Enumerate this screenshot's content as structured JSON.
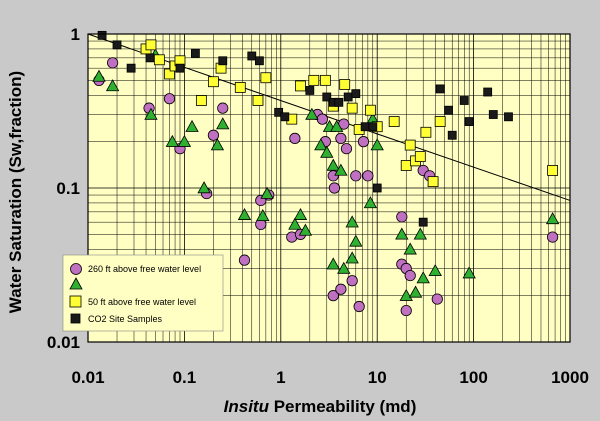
{
  "chart_data": {
    "type": "scatter",
    "xlabel": {
      "italic": "Insitu",
      "rest": " Permeability (md)"
    },
    "ylabel": "Water Saturation  (Sw,fraction)",
    "x_scale": "log",
    "y_scale": "log",
    "xlim": [
      0.01,
      1000
    ],
    "ylim": [
      0.01,
      1
    ],
    "x_ticks": [
      "0.01",
      "0.1",
      "1",
      "10",
      "100",
      "1000"
    ],
    "y_ticks": [
      "1",
      "0.1",
      "0.01"
    ],
    "grid": true,
    "legend_position": "bottom-left",
    "colors": {
      "plot_bg": "#ffffc4",
      "frame_bg": "#c9c9c9",
      "grid": "#000000",
      "circle": "#c070c0",
      "triangle": "#30b030",
      "square_yellow": "#ffff33",
      "square_black": "#1a1a1a"
    },
    "trend_line": {
      "points": [
        [
          0.01,
          1.0
        ],
        [
          1000,
          0.083
        ]
      ]
    },
    "series": [
      {
        "name": "260 ft above free water level",
        "marker": "circle",
        "points": [
          [
            0.013,
            0.5
          ],
          [
            0.018,
            0.65
          ],
          [
            0.043,
            0.33
          ],
          [
            0.07,
            0.38
          ],
          [
            0.09,
            0.18
          ],
          [
            0.17,
            0.092
          ],
          [
            0.2,
            0.22
          ],
          [
            0.25,
            0.33
          ],
          [
            0.62,
            0.058
          ],
          [
            0.62,
            0.083
          ],
          [
            0.75,
            0.09
          ],
          [
            0.42,
            0.034
          ],
          [
            1.3,
            0.048
          ],
          [
            1.6,
            0.05
          ],
          [
            1.4,
            0.21
          ],
          [
            2.4,
            0.3
          ],
          [
            2.7,
            0.28
          ],
          [
            2.9,
            0.2
          ],
          [
            3.5,
            0.12
          ],
          [
            3.6,
            0.1
          ],
          [
            4.2,
            0.21
          ],
          [
            4.5,
            0.26
          ],
          [
            4.8,
            0.18
          ],
          [
            6.0,
            0.12
          ],
          [
            7.2,
            0.2
          ],
          [
            8.0,
            0.12
          ],
          [
            3.5,
            0.02
          ],
          [
            4.2,
            0.022
          ],
          [
            5.5,
            0.025
          ],
          [
            6.5,
            0.017
          ],
          [
            18,
            0.065
          ],
          [
            18,
            0.032
          ],
          [
            20,
            0.03
          ],
          [
            22,
            0.027
          ],
          [
            30,
            0.13
          ],
          [
            35,
            0.12
          ],
          [
            20,
            0.016
          ],
          [
            42,
            0.019
          ],
          [
            660,
            0.048
          ]
        ]
      },
      {
        "name": "",
        "marker": "triangle",
        "points": [
          [
            0.013,
            0.53
          ],
          [
            0.018,
            0.46
          ],
          [
            0.045,
            0.3
          ],
          [
            0.05,
            0.73
          ],
          [
            0.075,
            0.2
          ],
          [
            0.1,
            0.2
          ],
          [
            0.12,
            0.25
          ],
          [
            0.16,
            0.1
          ],
          [
            0.22,
            0.19
          ],
          [
            0.25,
            0.26
          ],
          [
            0.42,
            0.067
          ],
          [
            0.65,
            0.066
          ],
          [
            0.72,
            0.092
          ],
          [
            1.4,
            0.058
          ],
          [
            1.6,
            0.067
          ],
          [
            1.8,
            0.053
          ],
          [
            2.1,
            0.3
          ],
          [
            2.6,
            0.19
          ],
          [
            3.0,
            0.17
          ],
          [
            3.2,
            0.25
          ],
          [
            3.5,
            0.14
          ],
          [
            3.8,
            0.25
          ],
          [
            4.2,
            0.13
          ],
          [
            5.5,
            0.06
          ],
          [
            6.0,
            0.045
          ],
          [
            8.5,
            0.08
          ],
          [
            9.0,
            0.28
          ],
          [
            10,
            0.19
          ],
          [
            3.5,
            0.032
          ],
          [
            4.5,
            0.03
          ],
          [
            5.5,
            0.035
          ],
          [
            18,
            0.05
          ],
          [
            22,
            0.04
          ],
          [
            28,
            0.05
          ],
          [
            20,
            0.02
          ],
          [
            25,
            0.021
          ],
          [
            30,
            0.026
          ],
          [
            40,
            0.029
          ],
          [
            90,
            0.028
          ],
          [
            660,
            0.063
          ]
        ]
      },
      {
        "name": "50 ft above free water level",
        "marker": "square",
        "fill": "#ffff33",
        "points": [
          [
            0.04,
            0.8
          ],
          [
            0.045,
            0.85
          ],
          [
            0.055,
            0.68
          ],
          [
            0.07,
            0.55
          ],
          [
            0.08,
            0.62
          ],
          [
            0.09,
            0.67
          ],
          [
            0.15,
            0.37
          ],
          [
            0.2,
            0.49
          ],
          [
            0.24,
            0.6
          ],
          [
            0.38,
            0.45
          ],
          [
            0.58,
            0.37
          ],
          [
            0.7,
            0.52
          ],
          [
            1.3,
            0.28
          ],
          [
            1.6,
            0.46
          ],
          [
            2.2,
            0.5
          ],
          [
            2.9,
            0.5
          ],
          [
            3.5,
            0.34
          ],
          [
            4.6,
            0.47
          ],
          [
            5.5,
            0.33
          ],
          [
            6.5,
            0.24
          ],
          [
            8.5,
            0.32
          ],
          [
            10,
            0.25
          ],
          [
            15,
            0.27
          ],
          [
            20,
            0.14
          ],
          [
            22,
            0.19
          ],
          [
            25,
            0.15
          ],
          [
            28,
            0.16
          ],
          [
            32,
            0.23
          ],
          [
            38,
            0.11
          ],
          [
            45,
            0.27
          ],
          [
            660,
            0.13
          ]
        ]
      },
      {
        "name": "CO2 Site Samples",
        "marker": "square",
        "fill": "#1a1a1a",
        "points": [
          [
            0.014,
            0.98
          ],
          [
            0.02,
            0.85
          ],
          [
            0.028,
            0.6
          ],
          [
            0.044,
            0.7
          ],
          [
            0.09,
            0.6
          ],
          [
            0.13,
            0.75
          ],
          [
            0.25,
            0.67
          ],
          [
            0.5,
            0.72
          ],
          [
            0.6,
            0.67
          ],
          [
            0.95,
            0.31
          ],
          [
            1.1,
            0.29
          ],
          [
            2.0,
            0.43
          ],
          [
            3.0,
            0.39
          ],
          [
            3.5,
            0.36
          ],
          [
            4.0,
            0.36
          ],
          [
            5.0,
            0.39
          ],
          [
            6.0,
            0.41
          ],
          [
            7.5,
            0.25
          ],
          [
            9.0,
            0.25
          ],
          [
            10,
            0.1
          ],
          [
            30,
            0.06
          ],
          [
            45,
            0.44
          ],
          [
            55,
            0.32
          ],
          [
            60,
            0.22
          ],
          [
            80,
            0.37
          ],
          [
            90,
            0.27
          ],
          [
            140,
            0.42
          ],
          [
            160,
            0.3
          ],
          [
            230,
            0.29
          ]
        ]
      }
    ]
  }
}
